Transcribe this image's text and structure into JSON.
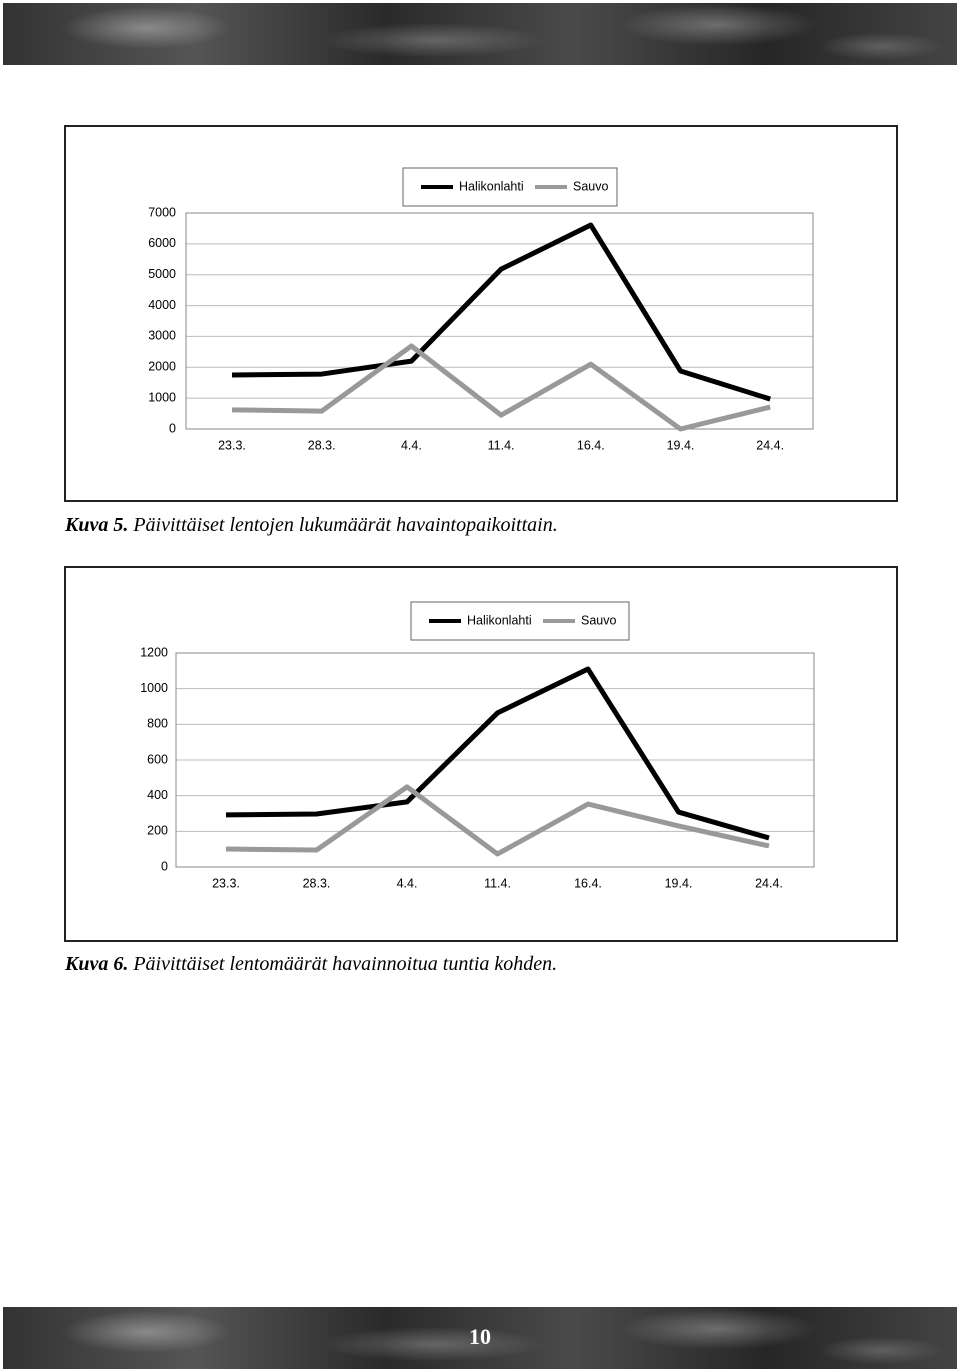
{
  "chart_data": [
    {
      "type": "line",
      "categories": [
        "23.3.",
        "28.3.",
        "4.4.",
        "11.4.",
        "16.4.",
        "19.4.",
        "24.4."
      ],
      "series": [
        {
          "name": "Halikonlahti",
          "color": "#000000",
          "values": [
            1750,
            1780,
            2200,
            5180,
            6610,
            1880,
            970
          ]
        },
        {
          "name": "Sauvo",
          "color": "#999999",
          "values": [
            620,
            580,
            2690,
            450,
            2100,
            0,
            710
          ]
        }
      ],
      "ylim": [
        0,
        7000
      ],
      "yticks": [
        0,
        1000,
        2000,
        3000,
        4000,
        5000,
        6000,
        7000
      ],
      "grid": true,
      "legend": "top"
    },
    {
      "type": "line",
      "categories": [
        "23.3.",
        "28.3.",
        "4.4.",
        "11.4.",
        "16.4.",
        "19.4.",
        "24.4."
      ],
      "series": [
        {
          "name": "Halikonlahti",
          "color": "#000000",
          "values": [
            292,
            297,
            365,
            864,
            1110,
            308,
            163
          ]
        },
        {
          "name": "Sauvo",
          "color": "#999999",
          "values": [
            101,
            95,
            449,
            73,
            353,
            230,
            118
          ]
        }
      ],
      "ylim": [
        0,
        1200
      ],
      "yticks": [
        0,
        200,
        400,
        600,
        800,
        1000,
        1200
      ],
      "grid": true,
      "legend": "top"
    }
  ],
  "captions": [
    {
      "label": "Kuva 5.",
      "text": "Päivittäiset lentojen lukumäärät havaintopaikoittain."
    },
    {
      "label": "Kuva 6.",
      "text": "Päivittäiset lentomäärät havainnoitua tuntia kohden."
    }
  ],
  "page_number": "10"
}
